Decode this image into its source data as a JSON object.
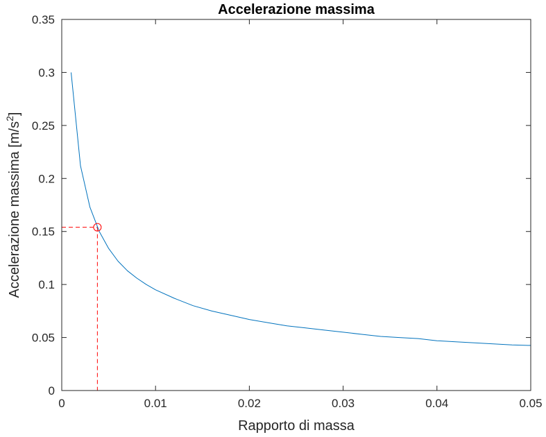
{
  "chart_data": {
    "type": "line",
    "title": "Accelerazione massima",
    "xlabel": "Rapporto di massa",
    "ylabel_prefix": "Accelerazione massima [m/s",
    "ylabel_exponent": "2",
    "ylabel_suffix": "]",
    "xlim": [
      0,
      0.05
    ],
    "ylim": [
      0,
      0.35
    ],
    "xticks": [
      0,
      0.01,
      0.02,
      0.03,
      0.04,
      0.05
    ],
    "xtick_labels": [
      "0",
      "0.01",
      "0.02",
      "0.03",
      "0.04",
      "0.05"
    ],
    "yticks": [
      0,
      0.05,
      0.1,
      0.15,
      0.2,
      0.25,
      0.3,
      0.35
    ],
    "ytick_labels": [
      "0",
      "0.05",
      "0.1",
      "0.15",
      "0.2",
      "0.25",
      "0.3",
      "0.35"
    ],
    "grid": false,
    "box": true,
    "series": [
      {
        "color": "#0072BD",
        "x": [
          0.001,
          0.002,
          0.003,
          0.004,
          0.005,
          0.006,
          0.007,
          0.008,
          0.009,
          0.01,
          0.012,
          0.014,
          0.016,
          0.018,
          0.02,
          0.022,
          0.024,
          0.026,
          0.028,
          0.03,
          0.032,
          0.034,
          0.036,
          0.038,
          0.04,
          0.042,
          0.044,
          0.046,
          0.048,
          0.05
        ],
        "y": [
          0.3,
          0.212,
          0.173,
          0.15,
          0.134,
          0.122,
          0.113,
          0.106,
          0.1,
          0.095,
          0.087,
          0.08,
          0.075,
          0.071,
          0.067,
          0.064,
          0.061,
          0.059,
          0.057,
          0.055,
          0.053,
          0.051,
          0.05,
          0.049,
          0.047,
          0.046,
          0.045,
          0.044,
          0.043,
          0.0425
        ]
      }
    ],
    "marker": {
      "x": 0.0038,
      "y": 0.154,
      "color": "#FF0000",
      "shape": "circle",
      "guide_lines": "dashed"
    }
  }
}
